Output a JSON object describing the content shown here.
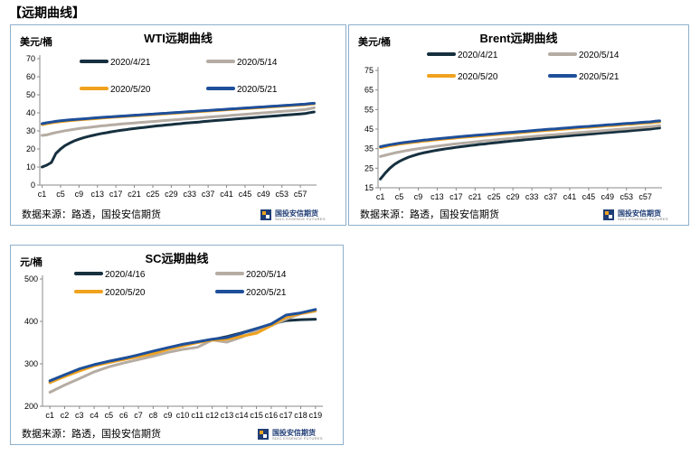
{
  "section_title": "【远期曲线】",
  "source_text": "数据来源：路透，国投安信期货",
  "logo": {
    "name": "国投安信期货",
    "sub": "SDIC ESSENCE FUTURES"
  },
  "colors": {
    "dark": "#16303f",
    "gray": "#b5aca3",
    "orange": "#f0a21e",
    "blue": "#1e4f9a",
    "panel_border": "#8fb0cc"
  },
  "chart_data": [
    {
      "type": "line",
      "title": "WTI远期曲线",
      "ylabel": "美元/桶",
      "ylim": [
        0,
        70
      ],
      "yticks": [
        0,
        10,
        20,
        30,
        40,
        50,
        60,
        70
      ],
      "x_points": 60,
      "xtick_labels": [
        "c1",
        "c5",
        "c9",
        "c13",
        "c17",
        "c21",
        "c25",
        "c29",
        "c33",
        "c37",
        "c41",
        "c45",
        "c49",
        "c53",
        "c57"
      ],
      "legend_position": "top",
      "series": [
        {
          "name": "2020/4/21",
          "color": "#16303f",
          "values": [
            10.0,
            11.0,
            12.5,
            17.5,
            20.0,
            21.9,
            23.3,
            24.5,
            25.4,
            26.2,
            26.9,
            27.5,
            28.1,
            28.6,
            29.0,
            29.5,
            29.9,
            30.3,
            30.6,
            31.0,
            31.3,
            31.6,
            31.9,
            32.2,
            32.5,
            32.8,
            33.0,
            33.3,
            33.5,
            33.8,
            34.0,
            34.3,
            34.5,
            34.7,
            34.9,
            35.2,
            35.4,
            35.6,
            35.8,
            36.0,
            36.2,
            36.4,
            36.6,
            36.8,
            37.0,
            37.2,
            37.4,
            37.6,
            37.8,
            38.0,
            38.2,
            38.4,
            38.6,
            38.8,
            39.0,
            39.2,
            39.4,
            39.6,
            40.1,
            40.5
          ]
        },
        {
          "name": "2020/5/14",
          "color": "#b5aca3",
          "values": [
            27.5,
            27.8,
            28.5,
            29.1,
            29.6,
            30.1,
            30.5,
            30.9,
            31.3,
            31.6,
            31.9,
            32.2,
            32.5,
            32.8,
            33.0,
            33.3,
            33.5,
            33.8,
            34.0,
            34.2,
            34.4,
            34.6,
            34.8,
            35.0,
            35.2,
            35.4,
            35.6,
            35.8,
            36.0,
            36.2,
            36.4,
            36.6,
            36.8,
            37.0,
            37.2,
            37.4,
            37.6,
            37.8,
            38.0,
            38.2,
            38.4,
            38.6,
            38.8,
            39.0,
            39.2,
            39.4,
            39.6,
            39.8,
            40.0,
            40.2,
            40.4,
            40.6,
            40.8,
            41.0,
            41.2,
            41.4,
            41.6,
            41.8,
            42.3,
            42.8
          ]
        },
        {
          "name": "2020/5/20",
          "color": "#f0a21e",
          "values": [
            33.5,
            34.0,
            34.4,
            34.8,
            35.1,
            35.4,
            35.7,
            35.9,
            36.1,
            36.3,
            36.5,
            36.7,
            36.9,
            37.1,
            37.3,
            37.5,
            37.7,
            37.8,
            38.0,
            38.2,
            38.3,
            38.5,
            38.7,
            38.8,
            39.0,
            39.2,
            39.3,
            39.5,
            39.7,
            39.8,
            40.0,
            40.2,
            40.3,
            40.5,
            40.7,
            40.8,
            41.0,
            41.2,
            41.3,
            41.5,
            41.7,
            41.8,
            42.0,
            42.2,
            42.3,
            42.5,
            42.7,
            42.8,
            43.0,
            43.2,
            43.3,
            43.5,
            43.7,
            43.8,
            44.0,
            44.2,
            44.3,
            44.5,
            44.8,
            45.0
          ]
        },
        {
          "name": "2020/5/21",
          "color": "#1e4f9a",
          "values": [
            34.0,
            34.5,
            34.9,
            35.3,
            35.6,
            35.9,
            36.1,
            36.3,
            36.5,
            36.7,
            36.9,
            37.1,
            37.3,
            37.5,
            37.7,
            37.8,
            38.0,
            38.2,
            38.3,
            38.5,
            38.7,
            38.8,
            39.0,
            39.2,
            39.3,
            39.5,
            39.7,
            39.8,
            40.0,
            40.2,
            40.3,
            40.5,
            40.7,
            40.8,
            41.0,
            41.2,
            41.3,
            41.5,
            41.7,
            41.8,
            42.0,
            42.2,
            42.3,
            42.5,
            42.7,
            42.8,
            43.0,
            43.2,
            43.3,
            43.5,
            43.7,
            43.8,
            44.0,
            44.2,
            44.3,
            44.5,
            44.7,
            44.8,
            45.1,
            45.3
          ]
        }
      ]
    },
    {
      "type": "line",
      "title": "Brent远期曲线",
      "ylabel": "美元/桶",
      "ylim": [
        15,
        75
      ],
      "yticks": [
        15,
        25,
        35,
        45,
        55,
        65,
        75
      ],
      "x_points": 60,
      "xtick_labels": [
        "c1",
        "c5",
        "c9",
        "c13",
        "c17",
        "c21",
        "c25",
        "c29",
        "c33",
        "c37",
        "c41",
        "c45",
        "c49",
        "c53",
        "c57"
      ],
      "legend_position": "top",
      "series": [
        {
          "name": "2020/4/21",
          "color": "#16303f",
          "values": [
            19.5,
            22.5,
            25.0,
            27.0,
            28.5,
            29.7,
            30.7,
            31.5,
            32.2,
            32.8,
            33.3,
            33.8,
            34.2,
            34.6,
            35.0,
            35.3,
            35.7,
            36.0,
            36.3,
            36.6,
            36.9,
            37.2,
            37.4,
            37.7,
            38.0,
            38.2,
            38.5,
            38.7,
            39.0,
            39.2,
            39.4,
            39.7,
            39.9,
            40.1,
            40.3,
            40.6,
            40.8,
            41.0,
            41.2,
            41.4,
            41.6,
            41.8,
            42.0,
            42.2,
            42.4,
            42.6,
            42.8,
            43.0,
            43.2,
            43.4,
            43.6,
            43.8,
            44.0,
            44.2,
            44.4,
            44.6,
            44.8,
            45.0,
            45.3,
            45.6
          ]
        },
        {
          "name": "2020/5/14",
          "color": "#b5aca3",
          "values": [
            31.0,
            31.6,
            32.2,
            32.8,
            33.3,
            33.8,
            34.2,
            34.6,
            35.0,
            35.3,
            35.7,
            36.0,
            36.3,
            36.6,
            36.9,
            37.2,
            37.5,
            37.7,
            38.0,
            38.2,
            38.5,
            38.7,
            39.0,
            39.2,
            39.4,
            39.7,
            39.9,
            40.1,
            40.3,
            40.6,
            40.8,
            41.0,
            41.2,
            41.4,
            41.6,
            41.8,
            42.0,
            42.2,
            42.4,
            42.6,
            42.8,
            43.0,
            43.2,
            43.4,
            43.6,
            43.8,
            44.0,
            44.2,
            44.4,
            44.6,
            44.8,
            45.0,
            45.2,
            45.4,
            45.6,
            45.8,
            46.0,
            46.2,
            46.5,
            46.8
          ]
        },
        {
          "name": "2020/5/20",
          "color": "#f0a21e",
          "values": [
            35.5,
            36.0,
            36.5,
            36.9,
            37.3,
            37.6,
            37.9,
            38.2,
            38.5,
            38.8,
            39.0,
            39.3,
            39.5,
            39.8,
            40.0,
            40.2,
            40.5,
            40.7,
            40.9,
            41.1,
            41.3,
            41.5,
            41.7,
            41.9,
            42.1,
            42.3,
            42.5,
            42.7,
            42.9,
            43.1,
            43.3,
            43.5,
            43.7,
            43.9,
            44.1,
            44.3,
            44.5,
            44.6,
            44.8,
            45.0,
            45.2,
            45.4,
            45.6,
            45.8,
            45.9,
            46.1,
            46.3,
            46.5,
            46.7,
            46.8,
            47.0,
            47.2,
            47.4,
            47.5,
            47.7,
            47.9,
            48.1,
            48.2,
            48.5,
            48.7
          ]
        },
        {
          "name": "2020/5/21",
          "color": "#1e4f9a",
          "values": [
            36.0,
            36.5,
            37.0,
            37.4,
            37.8,
            38.1,
            38.4,
            38.7,
            39.0,
            39.3,
            39.5,
            39.8,
            40.0,
            40.3,
            40.5,
            40.7,
            41.0,
            41.2,
            41.4,
            41.6,
            41.8,
            42.0,
            42.2,
            42.4,
            42.6,
            42.8,
            43.0,
            43.2,
            43.4,
            43.6,
            43.8,
            44.0,
            44.2,
            44.4,
            44.6,
            44.8,
            45.0,
            45.1,
            45.3,
            45.5,
            45.7,
            45.9,
            46.1,
            46.3,
            46.4,
            46.6,
            46.8,
            47.0,
            47.2,
            47.3,
            47.5,
            47.7,
            47.9,
            48.0,
            48.2,
            48.4,
            48.6,
            48.7,
            49.0,
            49.2
          ]
        }
      ]
    },
    {
      "type": "line",
      "title": "SC远期曲线",
      "ylabel": "元/桶",
      "ylim": [
        200,
        500
      ],
      "yticks": [
        200,
        300,
        400,
        500
      ],
      "x_points": 19,
      "xtick_labels": [
        "c1",
        "c2",
        "c3",
        "c4",
        "c5",
        "c6",
        "c7",
        "c8",
        "c9",
        "c10",
        "c11",
        "c12",
        "c13",
        "c14",
        "c15",
        "c16",
        "c17",
        "c18",
        "c19"
      ],
      "legend_position": "top",
      "series": [
        {
          "name": "2020/4/16",
          "color": "#16303f",
          "values": [
            256,
            271,
            285,
            297,
            306,
            313,
            320,
            329,
            337,
            345,
            351,
            357,
            364,
            373,
            383,
            393,
            402,
            404,
            405
          ]
        },
        {
          "name": "2020/5/14",
          "color": "#b5aca3",
          "values": [
            233,
            250,
            265,
            281,
            293,
            302,
            310,
            318,
            327,
            334,
            339,
            356,
            351,
            363,
            377,
            390,
            405,
            418,
            424
          ]
        },
        {
          "name": "2020/5/20",
          "color": "#f0a21e",
          "values": [
            256,
            270,
            283,
            295,
            303,
            310,
            317,
            324,
            334,
            342,
            350,
            356,
            358,
            365,
            372,
            390,
            410,
            418,
            425
          ]
        },
        {
          "name": "2020/5/21",
          "color": "#1e4f9a",
          "values": [
            260,
            274,
            288,
            298,
            306,
            313,
            321,
            330,
            338,
            346,
            352,
            358,
            362,
            372,
            383,
            394,
            415,
            420,
            428
          ]
        }
      ]
    }
  ]
}
